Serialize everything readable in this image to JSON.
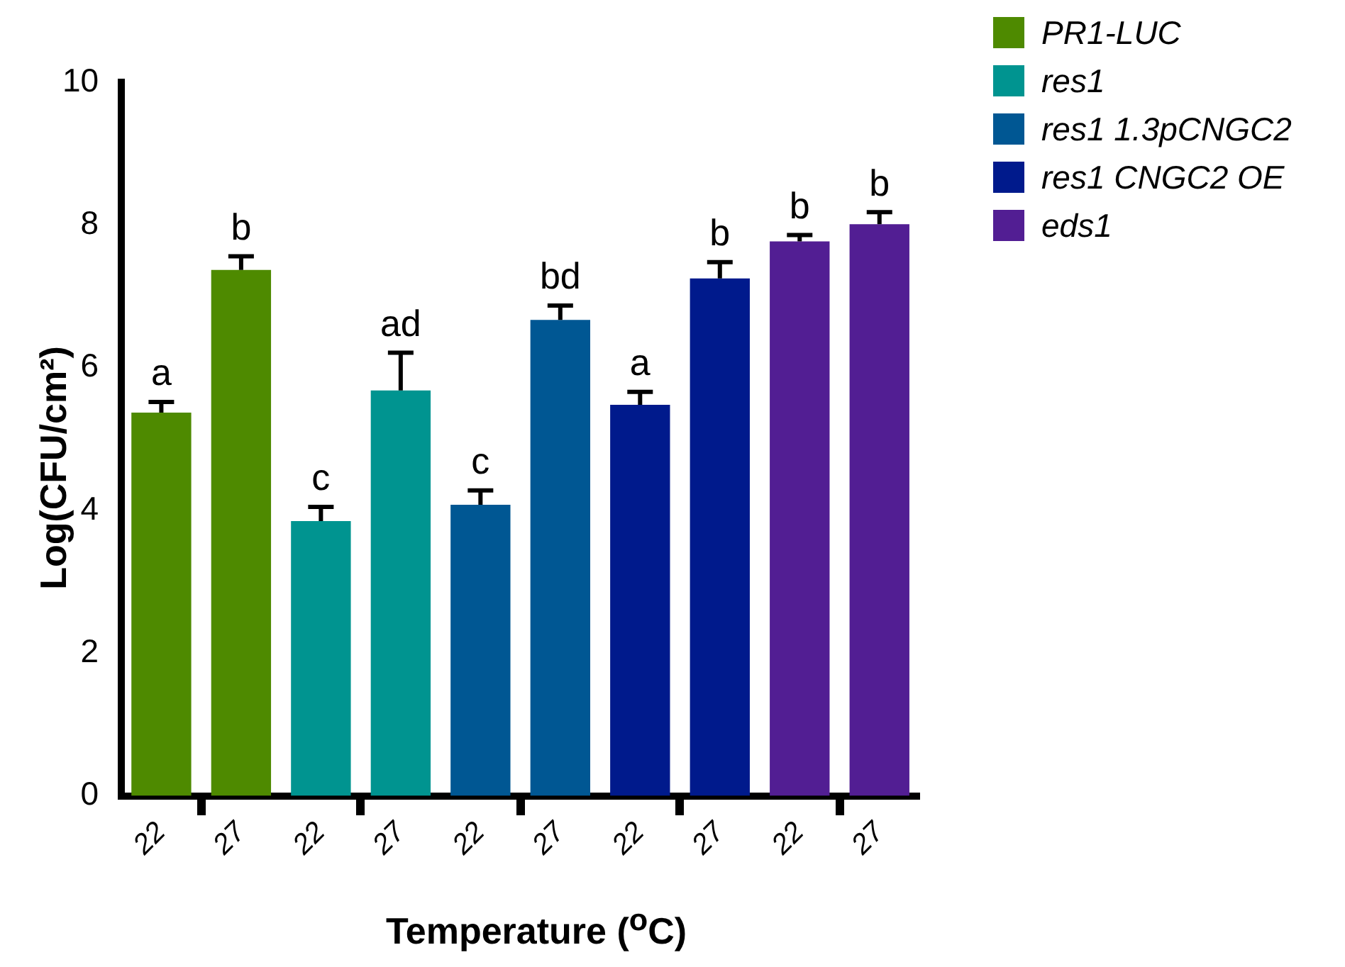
{
  "chart_data": {
    "type": "bar",
    "xlabel": "Temperature ($^{o}$C)",
    "ylabel": "Log(CFU/cm²)",
    "categories": [
      "22",
      "27",
      "22",
      "27",
      "22",
      "27",
      "22",
      "27",
      "22",
      "27"
    ],
    "ylim": [
      0,
      10
    ],
    "yticks": [
      0,
      2,
      4,
      6,
      8,
      10
    ],
    "grid": false,
    "legend": "top right",
    "series": [
      {
        "name": "PR1-LUC",
        "color": "#4e8a00",
        "values": [
          5.37,
          7.37,
          null,
          null,
          null,
          null,
          null,
          null,
          null,
          null
        ],
        "errors": [
          0.15,
          0.19,
          null,
          null,
          null,
          null,
          null,
          null,
          null,
          null
        ],
        "value_labels": [
          "a",
          "b",
          null,
          null,
          null,
          null,
          null,
          null,
          null,
          null
        ]
      },
      {
        "name": "res1",
        "color": "#009490",
        "values": [
          null,
          null,
          3.85,
          5.68,
          null,
          null,
          null,
          null,
          null,
          null
        ],
        "errors": [
          null,
          null,
          0.2,
          0.53,
          null,
          null,
          null,
          null,
          null,
          null
        ],
        "value_labels": [
          null,
          null,
          "c",
          "ad",
          null,
          null,
          null,
          null,
          null,
          null
        ]
      },
      {
        "name": "res1 1.3pCNGC2",
        "color": "#005793",
        "values": [
          null,
          null,
          null,
          null,
          4.08,
          6.67,
          null,
          null,
          null,
          null
        ],
        "errors": [
          null,
          null,
          null,
          null,
          0.2,
          0.2,
          null,
          null,
          null,
          null
        ],
        "value_labels": [
          null,
          null,
          null,
          null,
          "c",
          "bd",
          null,
          null,
          null,
          null
        ]
      },
      {
        "name": "res1 CNGC2 OE",
        "color": "#001a8c",
        "values": [
          null,
          null,
          null,
          null,
          null,
          null,
          5.48,
          7.25,
          null,
          null
        ],
        "errors": [
          null,
          null,
          null,
          null,
          null,
          null,
          0.18,
          0.23,
          null,
          null
        ],
        "value_labels": [
          null,
          null,
          null,
          null,
          null,
          null,
          "a",
          "b",
          null,
          null
        ]
      },
      {
        "name": "eds1",
        "color": "#521e93",
        "values": [
          null,
          null,
          null,
          null,
          null,
          null,
          null,
          null,
          7.77,
          8.01
        ],
        "errors": [
          null,
          null,
          null,
          null,
          null,
          null,
          null,
          null,
          0.09,
          0.17
        ],
        "value_labels": [
          null,
          null,
          null,
          null,
          null,
          null,
          null,
          null,
          "b",
          "b"
        ]
      }
    ]
  }
}
